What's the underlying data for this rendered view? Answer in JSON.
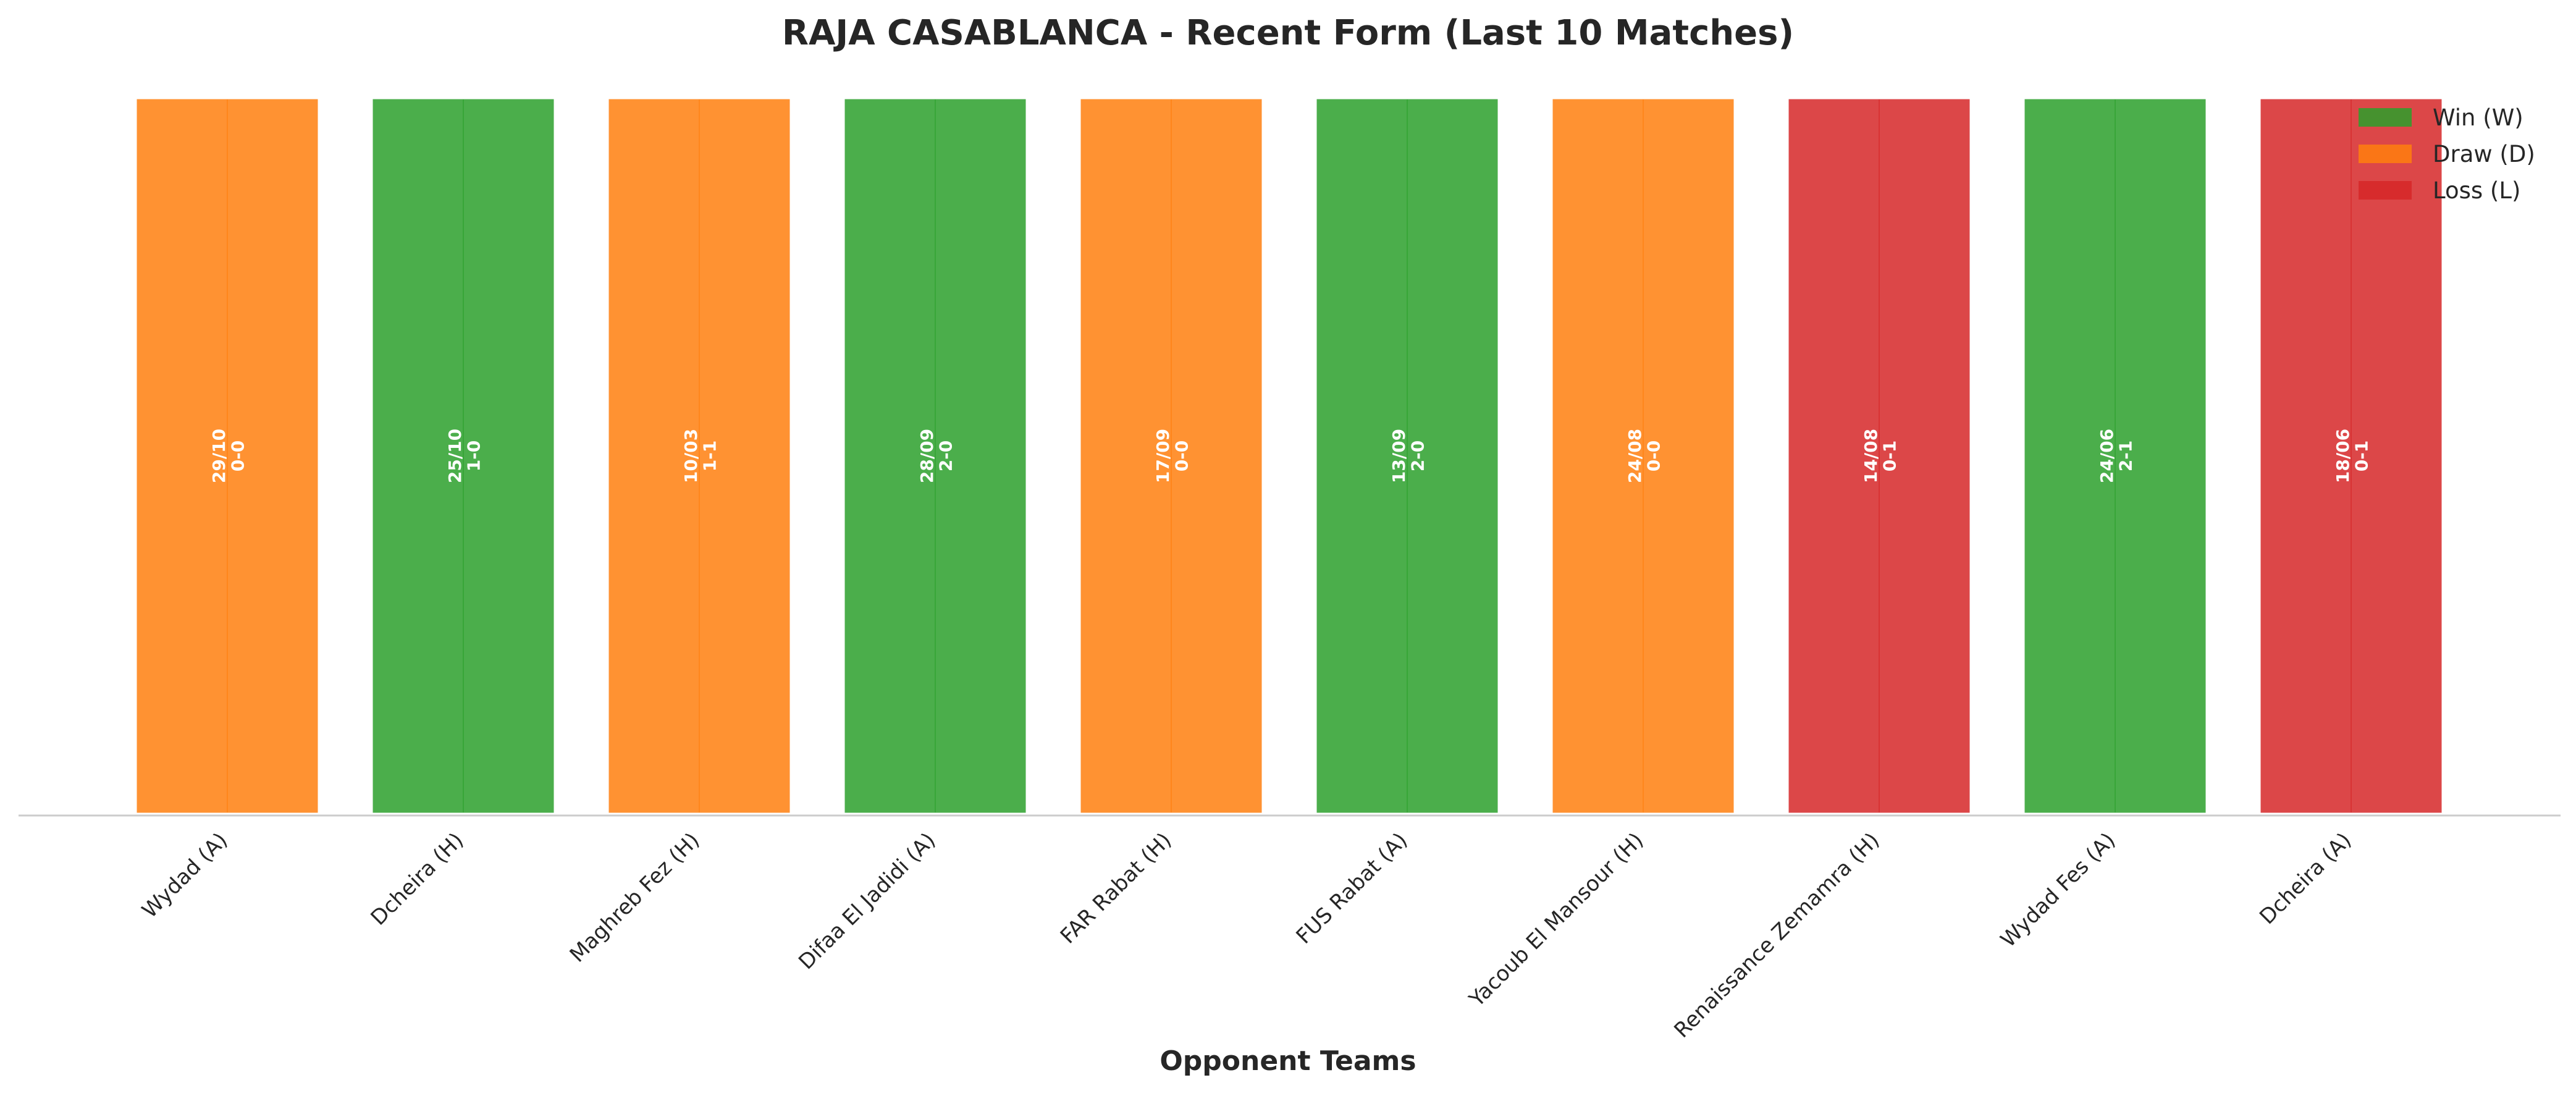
{
  "chart_data": {
    "type": "bar",
    "title": "RAJA CASABLANCA - Recent Form (Last 10 Matches)",
    "xlabel": "Opponent Teams",
    "ylabel": "",
    "ylim": [
      0,
      1
    ],
    "grid": false,
    "legend": {
      "position": "top-right",
      "entries": [
        {
          "key": "W",
          "label": "Win (W)"
        },
        {
          "key": "D",
          "label": "Draw (D)"
        },
        {
          "key": "L",
          "label": "Loss (L)"
        }
      ]
    },
    "colors": {
      "W": "#2ca02c",
      "D": "#ff7f0e",
      "L": "#d62728"
    },
    "categories": [
      "Wydad (A)",
      "Dcheira (H)",
      "Maghreb Fez (H)",
      "Difaa El Jadidi (A)",
      "FAR Rabat (H)",
      "FUS Rabat (A)",
      "Yacoub El Mansour (H)",
      "Renaissance Zemamra (H)",
      "Wydad Fes (A)",
      "Dcheira (A)"
    ],
    "values": [
      1,
      1,
      1,
      1,
      1,
      1,
      1,
      1,
      1,
      1
    ],
    "results": [
      "D",
      "W",
      "D",
      "W",
      "D",
      "W",
      "D",
      "L",
      "W",
      "L"
    ],
    "dates": [
      "29/10",
      "25/10",
      "10/03",
      "28/09",
      "17/09",
      "13/09",
      "24/08",
      "14/08",
      "24/06",
      "18/06"
    ],
    "scores": [
      "0-0",
      "1-0",
      "1-1",
      "2-0",
      "0-0",
      "2-0",
      "0-0",
      "0-1",
      "2-1",
      "0-1"
    ]
  }
}
